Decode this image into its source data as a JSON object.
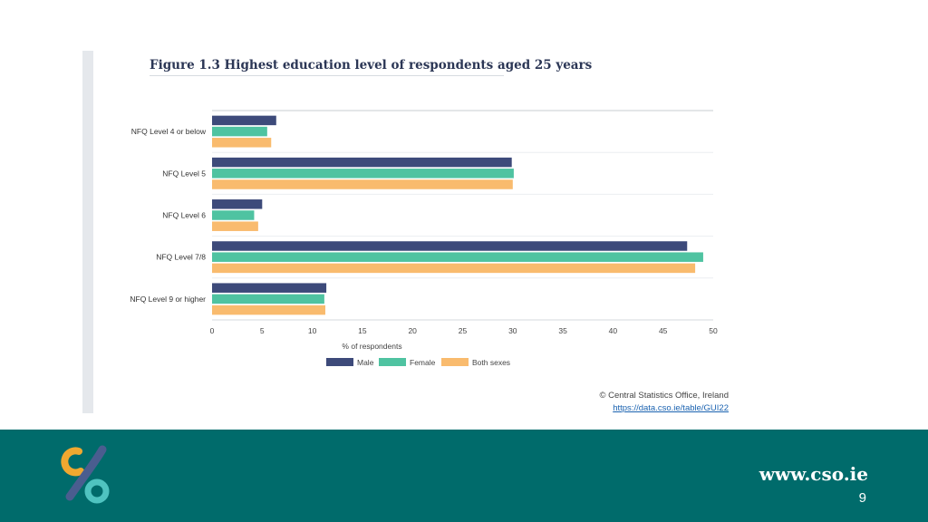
{
  "figure": {
    "title": "Figure 1.3 Highest education level of respondents aged 25 years"
  },
  "chart_data": {
    "type": "bar",
    "orientation": "horizontal",
    "title": "Figure 1.3 Highest education level of respondents aged 25 years",
    "categories": [
      "NFQ Level 4 or below",
      "NFQ Level 5",
      "NFQ Level 6",
      "NFQ Level 7/8",
      "NFQ Level 9 or higher"
    ],
    "series": [
      {
        "name": "Male",
        "color": "#3d4a7a",
        "values": [
          6.4,
          29.9,
          5.0,
          47.4,
          11.4
        ]
      },
      {
        "name": "Female",
        "color": "#4fc3a1",
        "values": [
          5.5,
          30.1,
          4.2,
          49.0,
          11.2
        ]
      },
      {
        "name": "Both sexes",
        "color": "#f9bb6e",
        "values": [
          5.9,
          30.0,
          4.6,
          48.2,
          11.3
        ]
      }
    ],
    "xlabel": "% of respondents",
    "ylabel": "",
    "xlim": [
      0,
      50
    ],
    "xticks": [
      0,
      5,
      10,
      15,
      20,
      25,
      30,
      35,
      40,
      45,
      50
    ],
    "legend_position": "bottom"
  },
  "source": {
    "credit": "© Central Statistics Office, Ireland",
    "link": "https://data.cso.ie/table/GUI22"
  },
  "footer": {
    "website": "www.cso.ie",
    "page_number": "9"
  }
}
